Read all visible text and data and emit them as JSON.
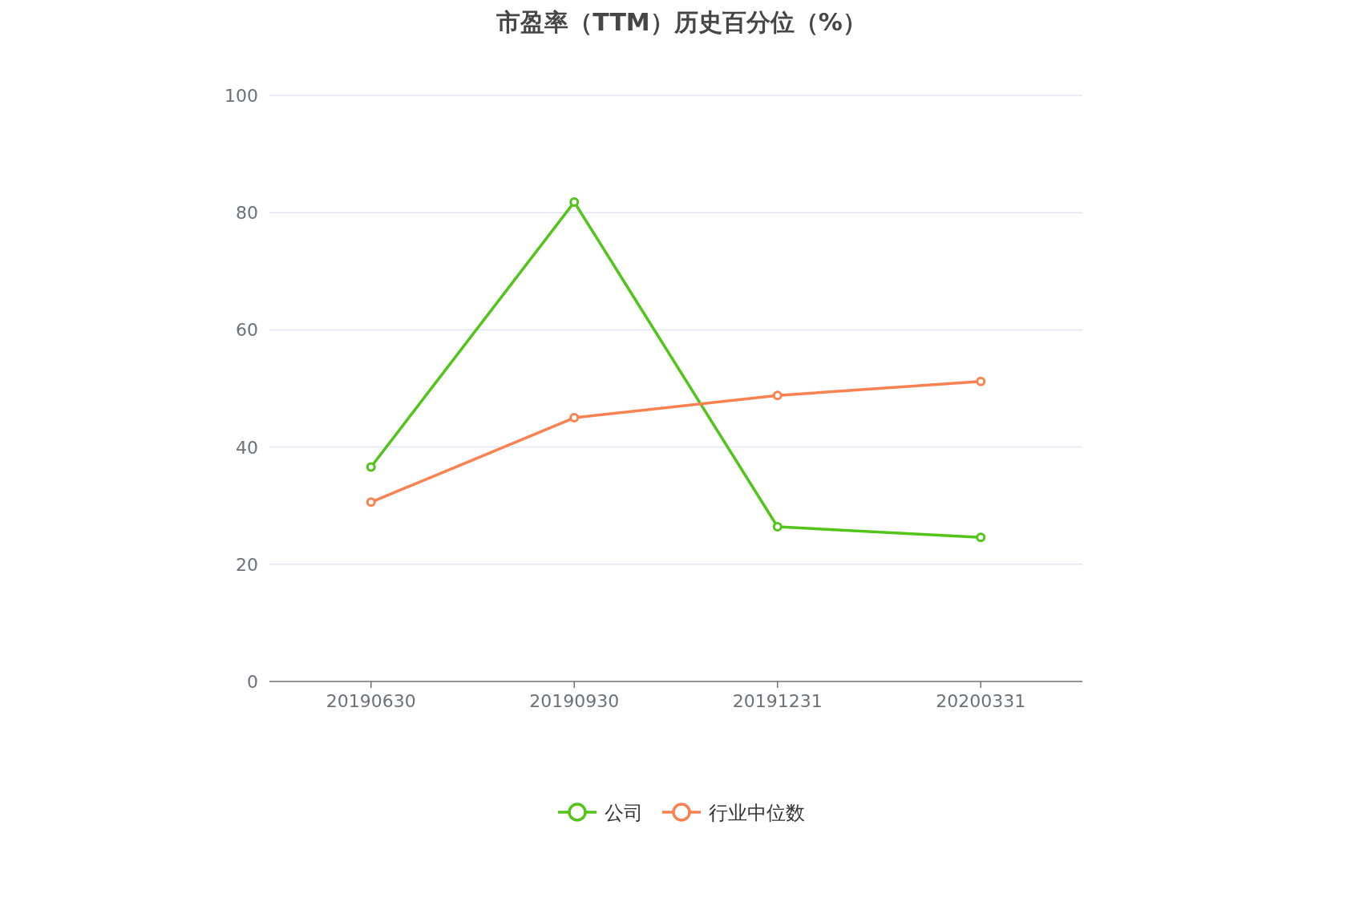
{
  "chart_data": {
    "type": "line",
    "title": "市盈率（TTM）历史百分位（%）",
    "categories": [
      "20190630",
      "20190930",
      "20191231",
      "20200331"
    ],
    "series": [
      {
        "name": "公司",
        "color": "#52c41a",
        "values": [
          36.6,
          81.8,
          26.4,
          24.6
        ]
      },
      {
        "name": "行业中位数",
        "color": "#fa8150",
        "values": [
          30.6,
          45.0,
          48.8,
          51.2
        ]
      }
    ],
    "ylim": [
      0,
      100
    ],
    "yticks": [
      0,
      20,
      40,
      60,
      80,
      100
    ],
    "grid": "y",
    "legend": "bottom",
    "marker": "circle",
    "line_style": "solid"
  }
}
